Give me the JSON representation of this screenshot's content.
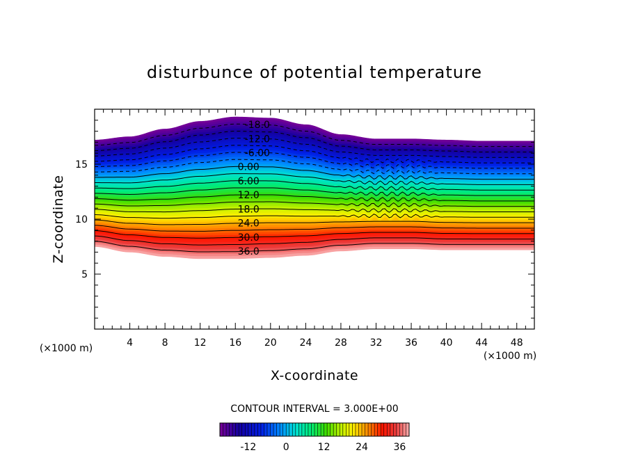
{
  "chart_data": {
    "type": "heatmap",
    "title": "disturbunce of potential temperature",
    "xlabel": "X-coordinate",
    "ylabel": "Z-coordinate",
    "x_unit": "(×1000 m)",
    "y_unit": "(×1000 m)",
    "xlim": [
      0,
      50
    ],
    "ylim": [
      0,
      20
    ],
    "x_ticks": [
      4,
      8,
      12,
      16,
      20,
      24,
      28,
      32,
      36,
      40,
      44,
      48
    ],
    "y_ticks": [
      5,
      10,
      15
    ],
    "contour_interval_text": "CONTOUR INTERVAL = 3.000E+00",
    "contour_interval": 3,
    "value_range": [
      -21,
      39
    ],
    "contour_labels": [
      {
        "text": "-18.0",
        "value": -18,
        "x": 18.5
      },
      {
        "text": "-12.0",
        "value": -12,
        "x": 18.5
      },
      {
        "text": "-6.00",
        "value": -6,
        "x": 18.5
      },
      {
        "text": "0.00",
        "value": 0,
        "x": 17.5
      },
      {
        "text": "6.00",
        "value": 6,
        "x": 17.5
      },
      {
        "text": "12.0",
        "value": 12,
        "x": 17.5
      },
      {
        "text": "18.0",
        "value": 18,
        "x": 17.5
      },
      {
        "text": "24.0",
        "value": 24,
        "x": 17.5
      },
      {
        "text": "30.0",
        "value": 30,
        "x": 17.5
      },
      {
        "text": "36.0",
        "value": 36,
        "x": 17.5
      }
    ],
    "boundary_top_profile": {
      "x": [
        0,
        4,
        8,
        12,
        16,
        20,
        24,
        28,
        32,
        36,
        40,
        44,
        48,
        50
      ],
      "z": [
        17.2,
        17.5,
        18.2,
        18.9,
        19.3,
        19.2,
        18.6,
        17.7,
        17.3,
        17.3,
        17.2,
        17.1,
        17.1,
        17.1
      ]
    },
    "boundary_bottom_profile": {
      "x": [
        0,
        4,
        8,
        12,
        16,
        20,
        24,
        28,
        32,
        36,
        40,
        44,
        48,
        50
      ],
      "z": [
        7.5,
        7.0,
        6.6,
        6.4,
        6.4,
        6.5,
        6.7,
        7.1,
        7.3,
        7.3,
        7.2,
        7.2,
        7.2,
        7.2
      ]
    },
    "colorbar": {
      "ticks": [
        -12,
        0,
        12,
        24,
        36
      ],
      "tick_labels": [
        "-12",
        "0",
        "12",
        "24",
        "36"
      ],
      "min": -21,
      "max": 39
    }
  }
}
